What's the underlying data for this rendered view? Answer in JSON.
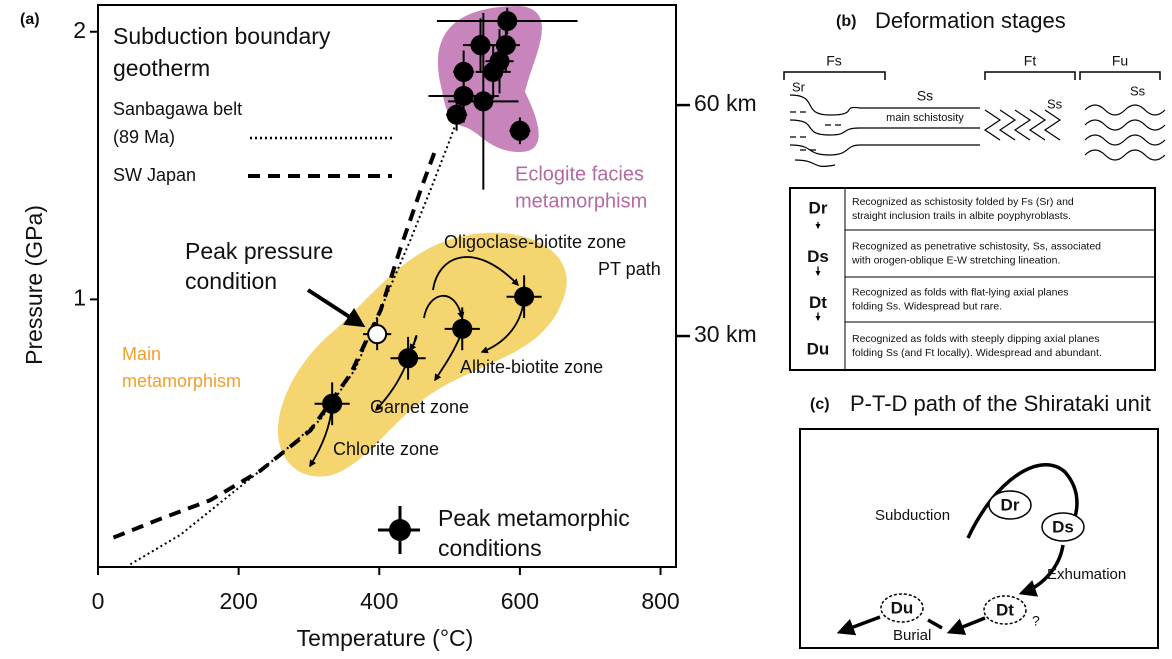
{
  "chart_data": {
    "type": "scatter",
    "panel_label": "(a)",
    "x_label": "Temperature (°C)",
    "y_label": "Pressure (GPa)",
    "xlim": [
      0,
      822
    ],
    "xticks": [
      0,
      200,
      400,
      600,
      800
    ],
    "ylim": [
      0,
      2.1
    ],
    "yticks": [
      1,
      2
    ],
    "y2lim": [
      0,
      73
    ],
    "y2ticks": [
      {
        "value": 30,
        "label": "30 km"
      },
      {
        "value": 60,
        "label": "60 km"
      }
    ],
    "geotherm_title": [
      "Subduction boundary",
      "geotherm"
    ],
    "lines": [
      {
        "name": [
          "Sanbagawa belt",
          "(89 Ma)"
        ],
        "style": "dotted",
        "color": "#000000",
        "x": [
          46,
          117,
          188,
          259,
          316,
          366,
          408,
          444,
          473,
          501,
          522
        ],
        "y": [
          0.01,
          0.12,
          0.27,
          0.42,
          0.55,
          0.74,
          1.0,
          1.22,
          1.41,
          1.6,
          1.75
        ]
      },
      {
        "name": [
          "SW Japan"
        ],
        "style": "dashed",
        "color": "#000000",
        "x": [
          22,
          89,
          160,
          231,
          302,
          359,
          402,
          430,
          459,
          480
        ],
        "y": [
          0.11,
          0.18,
          0.25,
          0.36,
          0.51,
          0.72,
          0.96,
          1.19,
          1.41,
          1.56
        ]
      }
    ],
    "series": [
      {
        "name": [
          "Peak metamorphic",
          "conditions"
        ],
        "color": "#000000",
        "x": [
          582,
          544,
          580,
          520,
          571,
          562,
          520,
          548,
          510,
          600,
          606,
          518,
          441,
          333
        ],
        "y": [
          2.04,
          1.95,
          1.95,
          1.85,
          1.89,
          1.85,
          1.76,
          1.74,
          1.69,
          1.63,
          1.01,
          0.89,
          0.78,
          0.61
        ],
        "x_err": [
          100,
          25,
          20,
          15,
          20,
          25,
          50,
          50,
          15,
          15,
          25,
          25,
          25,
          25
        ],
        "y_err": [
          0.05,
          0.1,
          0.1,
          0.08,
          0.12,
          0.1,
          0.1,
          0.33,
          0.06,
          0.05,
          0.08,
          0.08,
          0.08,
          0.08
        ]
      }
    ],
    "peak_pressure": {
      "label": [
        "Peak pressure",
        "condition"
      ],
      "x": 397,
      "y": 0.87,
      "x_err": 20,
      "y_err": 0.06
    },
    "annotations": {
      "eclogite": [
        "Eclogite facies",
        "metamorphism"
      ],
      "main": [
        "Main",
        "metamorphism"
      ],
      "oligoclase": "Oligoclase-biotite zone",
      "pt_path": "PT path",
      "albite": "Albite-biotite zone",
      "garnet": "Garnet zone",
      "chlorite": "Chlorite zone"
    }
  },
  "panel_b": {
    "label": "(b)",
    "title": "Deformation stages",
    "folds": [
      "Fs",
      "Ft",
      "Fu"
    ],
    "sr": "Sr",
    "ss": [
      "Ss",
      "Ss",
      "Ss"
    ],
    "main_schistosity": "main schistosity",
    "table": {
      "rows": [
        {
          "stage": "Dr",
          "description": [
            "Recognized as schistosity folded by Fs (Sr) and",
            "straight inclusion trails in albite poyphyroblasts."
          ]
        },
        {
          "stage": "Ds",
          "description": [
            "Recognized as penetrative schistosity, Ss, associated",
            "with orogen-oblique E-W stretching lineation."
          ]
        },
        {
          "stage": "Dt",
          "description": [
            "Recognized as folds with flat-lying axial planes",
            "folding Ss. Widespread but rare."
          ]
        },
        {
          "stage": "Du",
          "description": [
            "Recognized as folds with steeply dipping axial planes",
            "folding Ss (and Ft locally). Widespread and abundant."
          ]
        }
      ]
    }
  },
  "panel_c": {
    "label": "(c)",
    "title": "P-T-D path of the Shirataki unit",
    "stages": [
      "Dr",
      "Ds",
      "Dt",
      "Du"
    ],
    "subduction": "Subduction",
    "exhumation": "Exhumation",
    "burial": "Burial",
    "question": "?"
  }
}
